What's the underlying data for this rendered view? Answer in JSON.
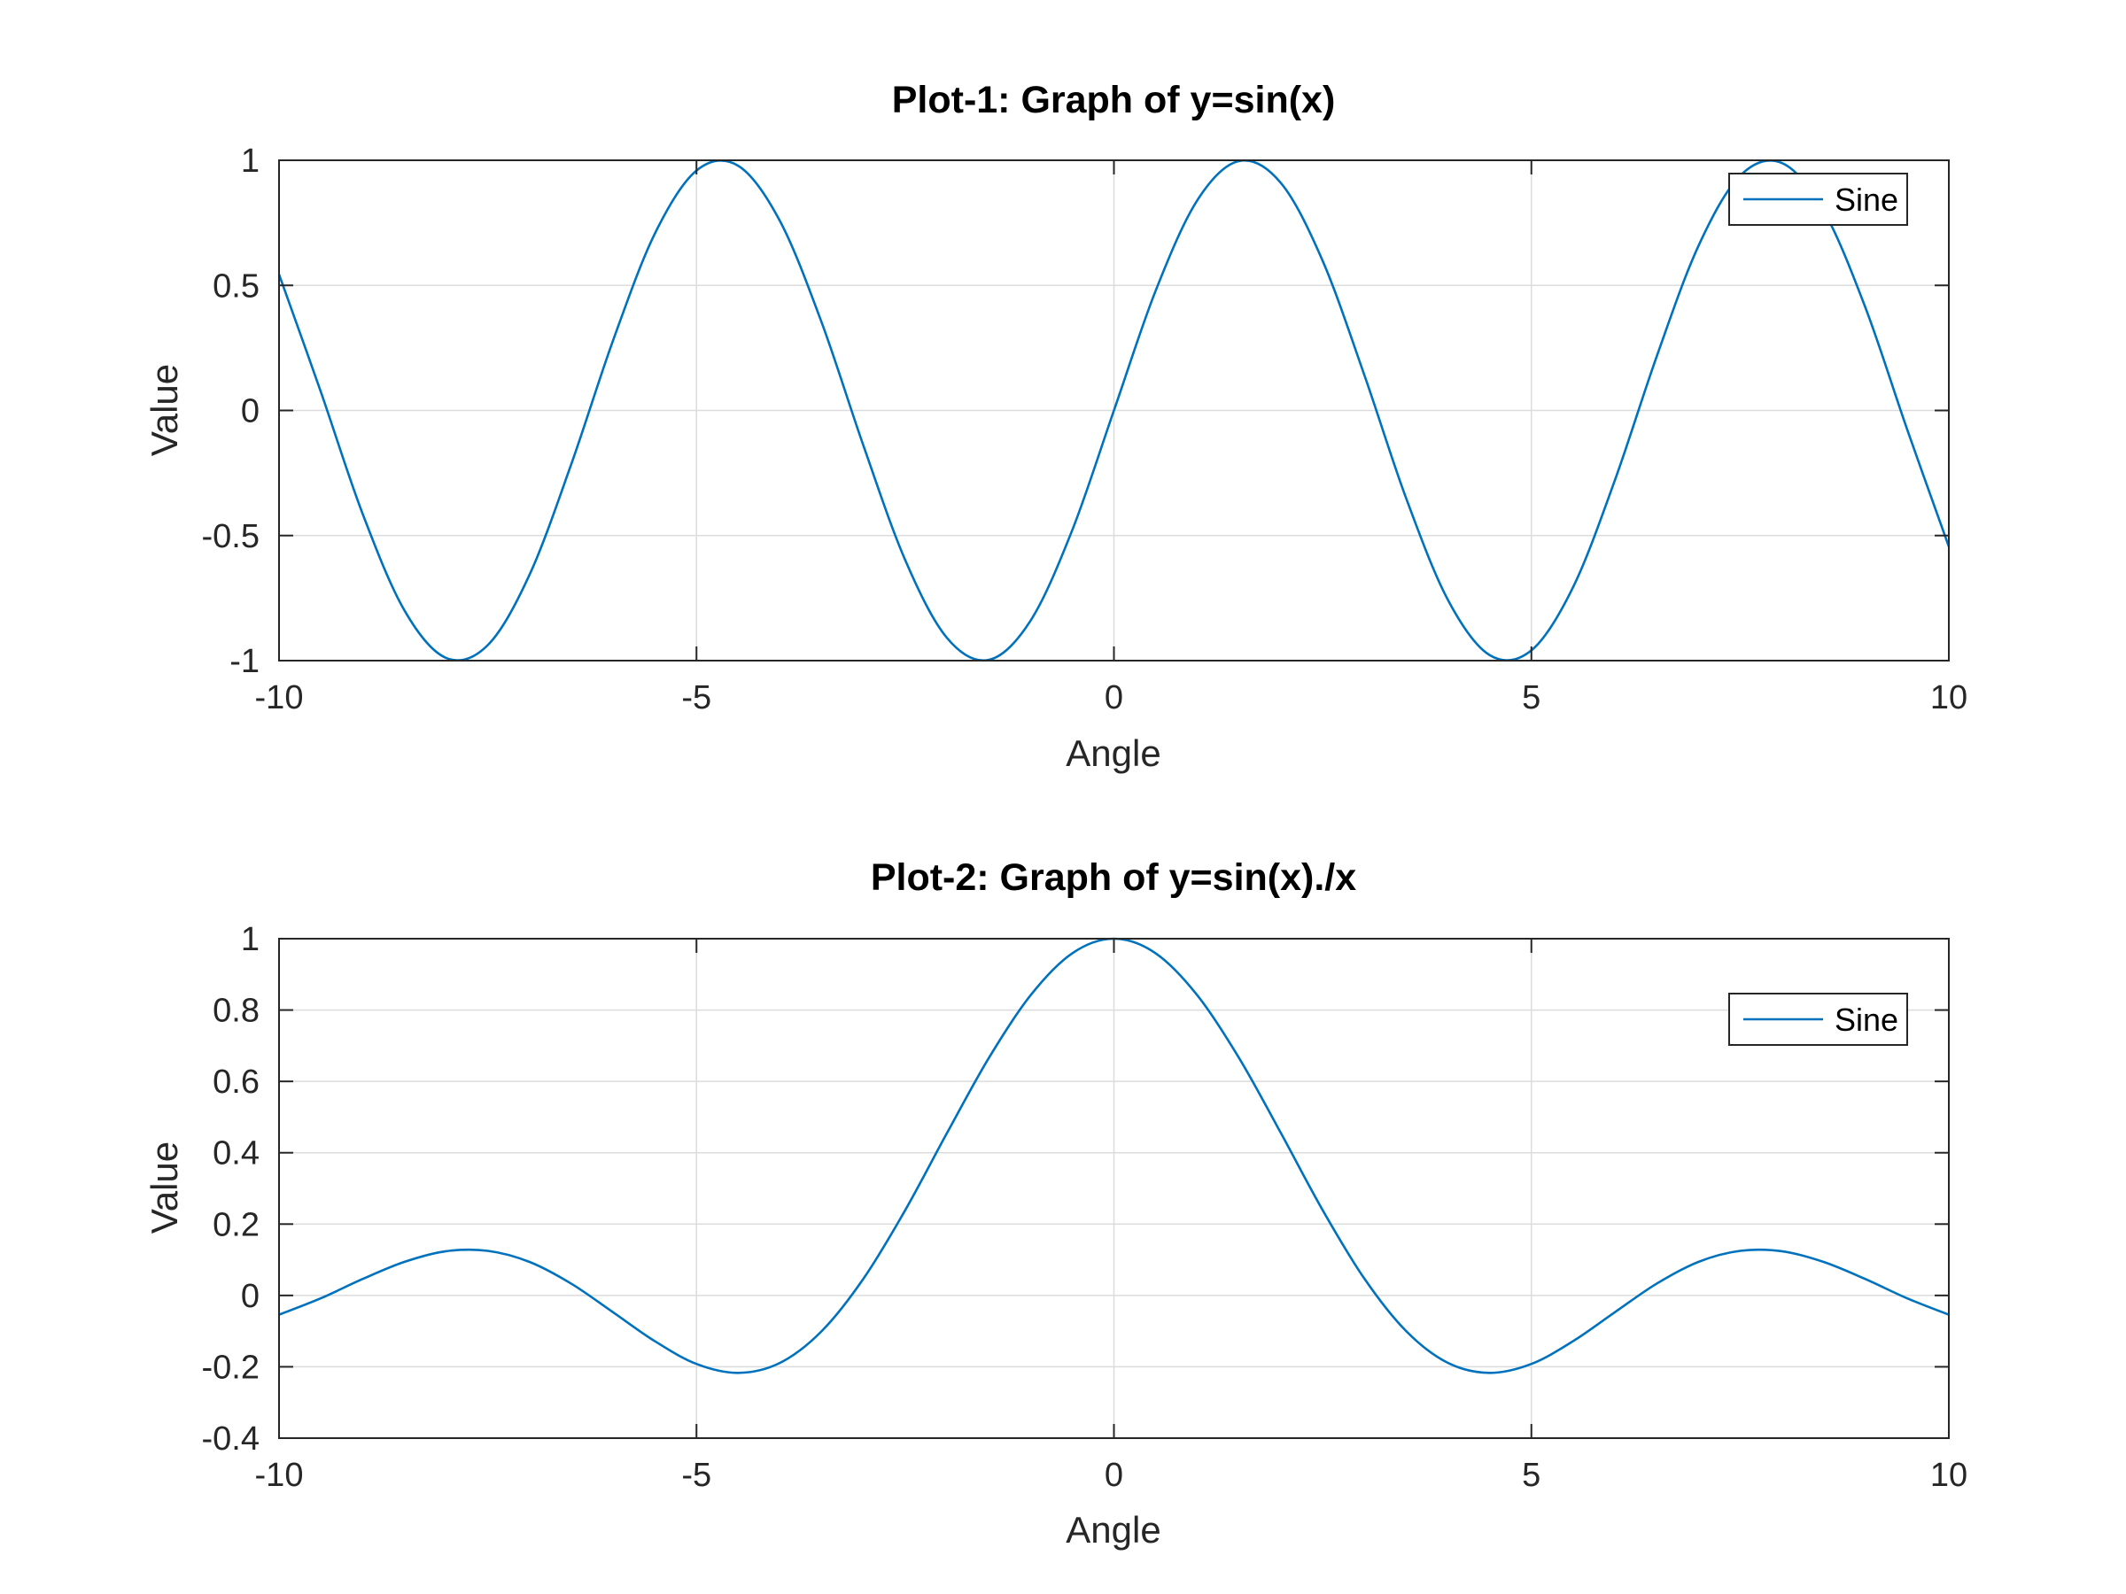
{
  "chart_data": [
    {
      "type": "line",
      "title": "Plot-1: Graph of y=sin(x)",
      "xlabel": "Angle",
      "ylabel": "Value",
      "xlim": [
        -10,
        10
      ],
      "ylim": [
        -1,
        1
      ],
      "xticks": [
        -10,
        -5,
        0,
        5,
        10
      ],
      "xtick_labels": [
        "-10",
        "-5",
        "0",
        "5",
        "10"
      ],
      "yticks": [
        -1,
        -0.5,
        0,
        0.5,
        1
      ],
      "ytick_labels": [
        "-1",
        "-0.5",
        "0",
        "0.5",
        "1"
      ],
      "grid": true,
      "legend_position": "top-right",
      "series": [
        {
          "name": "Sine",
          "color": "#0072bd",
          "x": [
            -10,
            -9.5,
            -9,
            -8.5,
            -8,
            -7.5,
            -7,
            -6.5,
            -6,
            -5.5,
            -5,
            -4.5,
            -4,
            -3.5,
            -3,
            -2.5,
            -2,
            -1.5,
            -1,
            -0.5,
            0,
            0.5,
            1,
            1.5,
            2,
            2.5,
            3,
            3.5,
            4,
            4.5,
            5,
            5.5,
            6,
            6.5,
            7,
            7.5,
            8,
            8.5,
            9,
            9.5,
            10
          ],
          "y": [
            0.544,
            0.075,
            -0.412,
            -0.798,
            -0.989,
            -0.938,
            -0.657,
            -0.215,
            0.279,
            0.706,
            0.959,
            0.978,
            0.757,
            0.351,
            -0.141,
            -0.598,
            -0.909,
            -0.997,
            -0.841,
            -0.479,
            0,
            0.479,
            0.841,
            0.997,
            0.909,
            0.598,
            0.141,
            -0.351,
            -0.757,
            -0.978,
            -0.959,
            -0.706,
            -0.279,
            0.215,
            0.657,
            0.938,
            0.989,
            0.798,
            0.412,
            -0.075,
            -0.544
          ]
        }
      ]
    },
    {
      "type": "line",
      "title": "Plot-2: Graph of y=sin(x)./x",
      "xlabel": "Angle",
      "ylabel": "Value",
      "xlim": [
        -10,
        10
      ],
      "ylim": [
        -0.4,
        1
      ],
      "xticks": [
        -10,
        -5,
        0,
        5,
        10
      ],
      "xtick_labels": [
        "-10",
        "-5",
        "0",
        "5",
        "10"
      ],
      "yticks": [
        -0.4,
        -0.2,
        0,
        0.2,
        0.4,
        0.6,
        0.8,
        1
      ],
      "ytick_labels": [
        "-0.4",
        "-0.2",
        "0",
        "0.2",
        "0.4",
        "0.6",
        "0.8",
        "1"
      ],
      "grid": true,
      "legend_position": "top-right",
      "series": [
        {
          "name": "Sine",
          "color": "#0072bd",
          "x": [
            -10,
            -9.5,
            -9,
            -8.5,
            -8,
            -7.5,
            -7,
            -6.5,
            -6,
            -5.5,
            -5,
            -4.5,
            -4,
            -3.5,
            -3,
            -2.5,
            -2,
            -1.5,
            -1,
            -0.5,
            0,
            0.5,
            1,
            1.5,
            2,
            2.5,
            3,
            3.5,
            4,
            4.5,
            5,
            5.5,
            6,
            6.5,
            7,
            7.5,
            8,
            8.5,
            9,
            9.5,
            10
          ],
          "y": [
            -0.054,
            -0.008,
            0.046,
            0.094,
            0.124,
            0.125,
            0.094,
            0.033,
            -0.047,
            -0.128,
            -0.192,
            -0.217,
            -0.189,
            -0.1,
            0.047,
            0.239,
            0.455,
            0.665,
            0.841,
            0.959,
            1,
            0.959,
            0.841,
            0.665,
            0.455,
            0.239,
            0.047,
            -0.1,
            -0.189,
            -0.217,
            -0.192,
            -0.128,
            -0.047,
            0.033,
            0.094,
            0.125,
            0.124,
            0.094,
            0.046,
            -0.008,
            -0.054
          ]
        }
      ]
    }
  ]
}
